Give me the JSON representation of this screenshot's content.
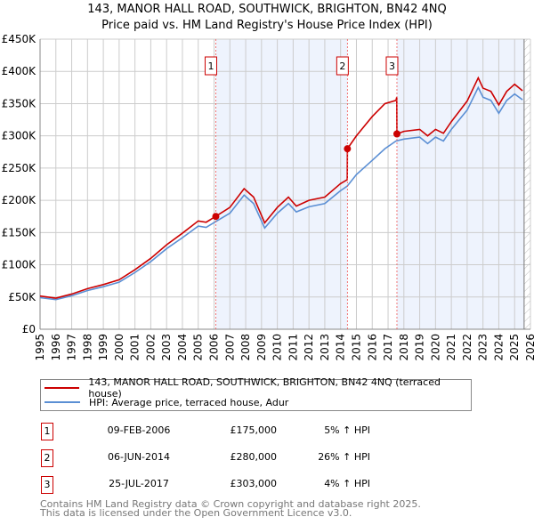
{
  "chart_data": {
    "type": "line",
    "title": "143, MANOR HALL ROAD, SOUTHWICK, BRIGHTON, BN42 4NQ",
    "subtitle": "Price paid vs. HM Land Registry's House Price Index (HPI)",
    "xlim": [
      1995,
      2026
    ],
    "ylim": [
      0,
      450000
    ],
    "y_ticks": [
      0,
      50000,
      100000,
      150000,
      200000,
      250000,
      300000,
      350000,
      400000,
      450000
    ],
    "y_tick_labels": [
      "£0",
      "£50K",
      "£100K",
      "£150K",
      "£200K",
      "£250K",
      "£300K",
      "£350K",
      "£400K",
      "£450K"
    ],
    "x_tick_labels": [
      "1995",
      "1996",
      "1997",
      "1998",
      "1999",
      "2000",
      "2001",
      "2002",
      "2003",
      "2004",
      "2005",
      "2006",
      "2007",
      "2008",
      "2009",
      "2010",
      "2011",
      "2012",
      "2013",
      "2014",
      "2015",
      "2016",
      "2017",
      "2018",
      "2019",
      "2020",
      "2021",
      "2022",
      "2023",
      "2024",
      "2025",
      "2026"
    ],
    "grid": true,
    "series": [
      {
        "name": "143, MANOR HALL ROAD, SOUTHWICK, BRIGHTON, BN42 4NQ (terraced house)",
        "color": "#cc0000",
        "x": [
          1995,
          1996,
          1997,
          1998,
          1999,
          2000,
          2001,
          2002,
          2003,
          2004,
          2005,
          2005.5,
          2006.1,
          2007,
          2007.9,
          2008.5,
          2009.2,
          2010,
          2010.7,
          2011.2,
          2012,
          2013,
          2014,
          2014.42,
          2014.43,
          2015,
          2015.5,
          2016,
          2016.8,
          2017.5,
          2017.55,
          2017.56,
          2018,
          2019,
          2019.5,
          2020,
          2020.5,
          2021,
          2021.5,
          2022,
          2022.7,
          2023,
          2023.5,
          2024,
          2024.5,
          2025,
          2025.5
        ],
        "y": [
          51500,
          48300,
          54600,
          63000,
          69300,
          76700,
          92400,
          110000,
          131000,
          149000,
          168000,
          166000,
          175000,
          189000,
          218000,
          205000,
          165000,
          189000,
          205000,
          191000,
          200000,
          205000,
          226000,
          232000,
          280000,
          300000,
          315000,
          330000,
          350000,
          355000,
          360000,
          303000,
          307000,
          310000,
          300000,
          310000,
          304000,
          322000,
          338000,
          354000,
          390000,
          374000,
          369000,
          348000,
          369000,
          380000,
          370000
        ]
      },
      {
        "name": "HPI: Average price, terraced house, Adur",
        "color": "#5b8fd4",
        "x": [
          1995,
          1996,
          1997,
          1998,
          1999,
          2000,
          2001,
          2002,
          2003,
          2004,
          2005,
          2005.5,
          2006.1,
          2007,
          2007.9,
          2008.5,
          2009.2,
          2010,
          2010.7,
          2011.2,
          2012,
          2013,
          2014,
          2014.42,
          2015,
          2016,
          2016.8,
          2017.5,
          2018,
          2019,
          2019.5,
          2020,
          2020.5,
          2021,
          2021.5,
          2022,
          2022.7,
          2023,
          2023.5,
          2024,
          2024.5,
          2025,
          2025.5
        ],
        "y": [
          49000,
          46000,
          52000,
          60000,
          66000,
          73000,
          88000,
          105000,
          125000,
          142000,
          160000,
          158000,
          167000,
          180000,
          208000,
          195000,
          157000,
          180000,
          195000,
          182000,
          190000,
          195000,
          215000,
          222000,
          240000,
          262000,
          280000,
          292000,
          295000,
          298000,
          288000,
          298000,
          292000,
          310000,
          325000,
          340000,
          375000,
          360000,
          355000,
          335000,
          355000,
          365000,
          356000
        ]
      }
    ],
    "sales": [
      {
        "label": "1",
        "x": 2006.11,
        "y": 175000
      },
      {
        "label": "2",
        "x": 2014.43,
        "y": 280000
      },
      {
        "label": "3",
        "x": 2017.56,
        "y": 303000
      }
    ],
    "shaded_ranges": [
      [
        2006.11,
        2014.43
      ],
      [
        2017.56,
        2025.6
      ]
    ],
    "hatched_from": 2025.6,
    "legend_placement": "below"
  },
  "legend": {
    "items": [
      {
        "label": "143, MANOR HALL ROAD, SOUTHWICK, BRIGHTON, BN42 4NQ (terraced house)",
        "color": "#cc0000"
      },
      {
        "label": "HPI: Average price, terraced house, Adur",
        "color": "#5b8fd4"
      }
    ]
  },
  "transactions": [
    {
      "num": "1",
      "date": "09-FEB-2006",
      "price": "£175,000",
      "hpi": "5% ↑ HPI"
    },
    {
      "num": "2",
      "date": "06-JUN-2014",
      "price": "£280,000",
      "hpi": "26% ↑ HPI"
    },
    {
      "num": "3",
      "date": "25-JUL-2017",
      "price": "£303,000",
      "hpi": "4% ↑ HPI"
    }
  ],
  "footer": {
    "line1": "Contains HM Land Registry data © Crown copyright and database right 2025.",
    "line2": "This data is licensed under the Open Government Licence v3.0."
  }
}
